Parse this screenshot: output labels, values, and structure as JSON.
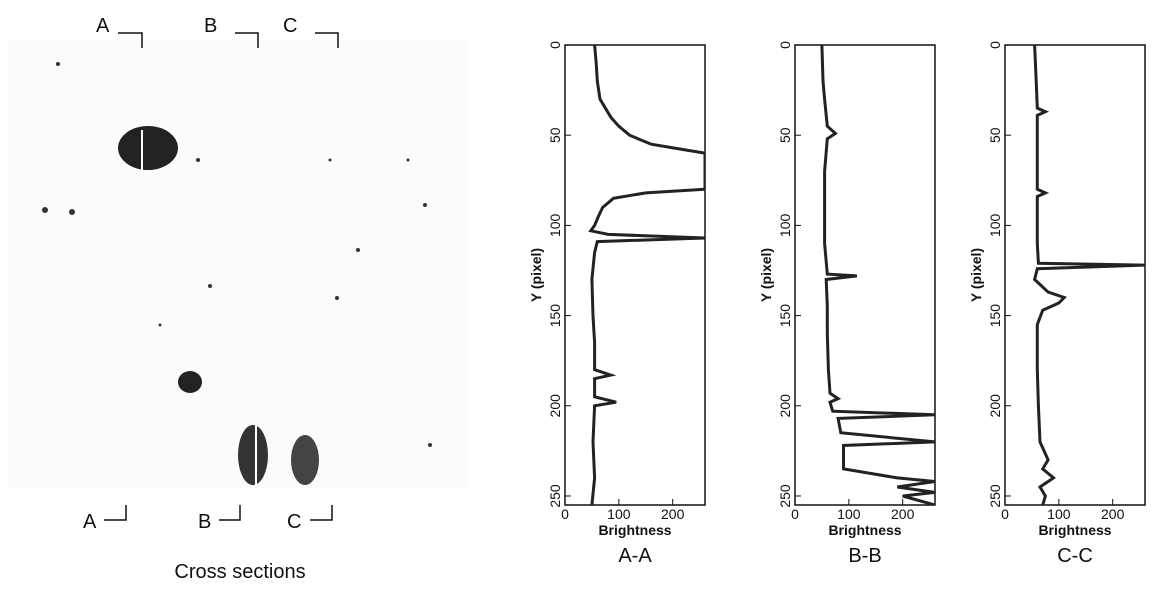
{
  "image_panel": {
    "top_labels": [
      "A",
      "B",
      "C"
    ],
    "bottom_labels": [
      "A",
      "B",
      "C"
    ],
    "caption": "Cross sections"
  },
  "chart_data": [
    {
      "type": "line",
      "title": "A-A",
      "xlabel": "Brightness",
      "ylabel": "Y (pixel)",
      "color": "#222222",
      "xlim": [
        0,
        260
      ],
      "ylim": [
        0,
        255
      ],
      "y_inverted": true,
      "xticks": [
        0,
        100,
        200
      ],
      "yticks": [
        0,
        50,
        100,
        150,
        200,
        250
      ],
      "y": [
        0,
        10,
        20,
        30,
        35,
        40,
        45,
        50,
        55,
        58,
        60,
        65,
        70,
        75,
        80,
        82,
        85,
        90,
        95,
        100,
        103,
        105,
        107,
        109,
        115,
        130,
        150,
        165,
        180,
        183,
        185,
        195,
        198,
        200,
        220,
        240,
        255
      ],
      "values": [
        55,
        58,
        60,
        65,
        75,
        85,
        100,
        120,
        160,
        220,
        260,
        260,
        260,
        260,
        260,
        150,
        90,
        70,
        62,
        55,
        48,
        80,
        260,
        60,
        55,
        50,
        52,
        55,
        55,
        85,
        55,
        55,
        95,
        55,
        52,
        55,
        50
      ]
    },
    {
      "type": "line",
      "title": "B-B",
      "xlabel": "Brightness",
      "ylabel": "Y (pixel)",
      "color": "#222222",
      "xlim": [
        0,
        260
      ],
      "ylim": [
        0,
        255
      ],
      "y_inverted": true,
      "xticks": [
        0,
        100,
        200
      ],
      "yticks": [
        0,
        50,
        100,
        150,
        200,
        250
      ],
      "y": [
        0,
        20,
        30,
        45,
        49,
        52,
        70,
        90,
        110,
        127,
        128,
        130,
        145,
        160,
        180,
        193,
        196,
        198,
        203,
        205,
        207,
        215,
        220,
        222,
        235,
        240,
        242,
        245,
        248,
        250,
        255
      ],
      "values": [
        50,
        52,
        55,
        60,
        75,
        60,
        55,
        55,
        55,
        60,
        115,
        58,
        60,
        60,
        62,
        65,
        80,
        65,
        70,
        260,
        80,
        85,
        260,
        90,
        90,
        190,
        260,
        190,
        260,
        200,
        260
      ]
    },
    {
      "type": "line",
      "title": "C-C",
      "xlabel": "Brightness",
      "ylabel": "Y (pixel)",
      "color": "#222222",
      "xlim": [
        0,
        260
      ],
      "ylim": [
        0,
        255
      ],
      "y_inverted": true,
      "xticks": [
        0,
        100,
        200
      ],
      "yticks": [
        0,
        50,
        100,
        150,
        200,
        250
      ],
      "y": [
        0,
        20,
        35,
        37,
        39,
        80,
        82,
        84,
        110,
        121,
        122,
        124,
        130,
        137,
        140,
        143,
        147,
        155,
        180,
        200,
        220,
        230,
        235,
        240,
        245,
        250,
        255
      ],
      "values": [
        55,
        58,
        60,
        75,
        60,
        60,
        75,
        60,
        60,
        62,
        260,
        60,
        55,
        80,
        110,
        100,
        70,
        60,
        60,
        62,
        65,
        80,
        70,
        90,
        65,
        75,
        70
      ]
    }
  ]
}
